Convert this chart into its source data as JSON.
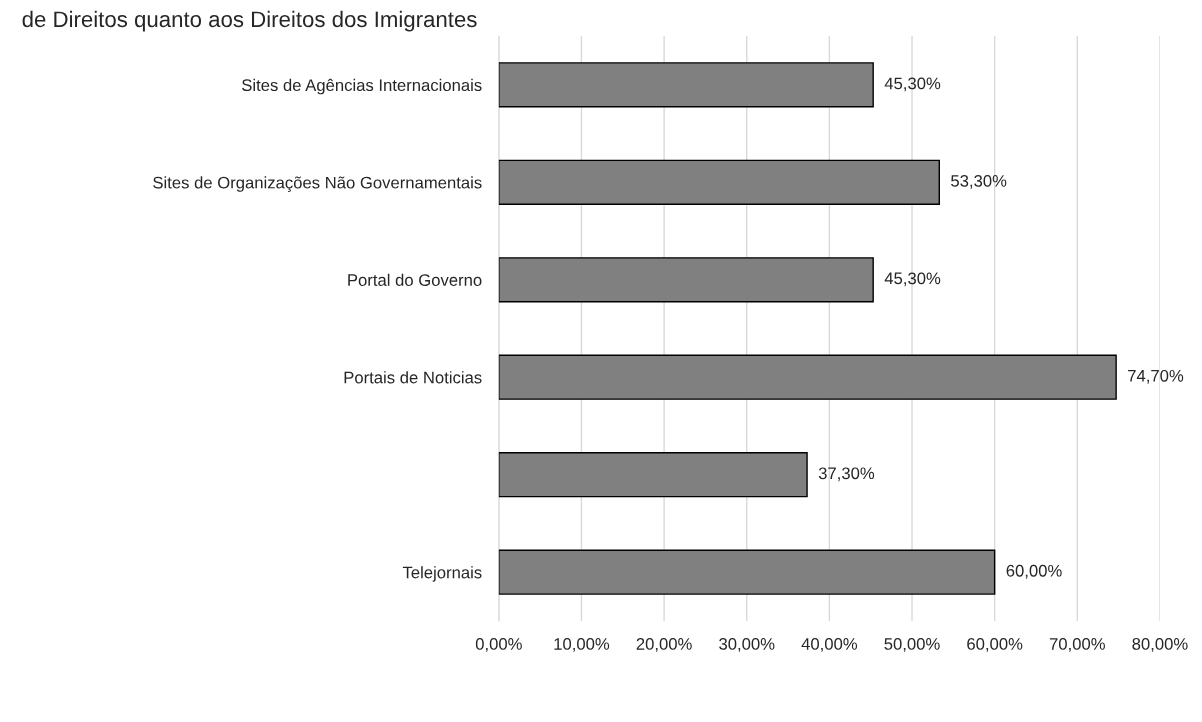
{
  "chart_data": {
    "type": "bar",
    "orientation": "horizontal",
    "title": "de Direitos quanto aos Direitos dos Imigrantes",
    "categories": [
      "Sites de Agências Internacionais",
      "Sites de Organizações Não Governamentais",
      "Portal do Governo",
      "Portais de Noticias",
      null,
      "Telejornais"
    ],
    "values": [
      45.3,
      53.3,
      45.3,
      74.7,
      37.3,
      60.0
    ],
    "value_labels": [
      "45,30%",
      "53,30%",
      "45,30%",
      "74,70%",
      "37,30%",
      "60,00%"
    ],
    "color": "#808080",
    "xlim": [
      0,
      80
    ],
    "xticks": [
      {
        "value": 0,
        "label": "0,00%"
      },
      {
        "value": 10,
        "label": "10,00%"
      },
      {
        "value": 20,
        "label": "20,00%"
      },
      {
        "value": 30,
        "label": "30,00%"
      },
      {
        "value": 40,
        "label": "40,00%"
      },
      {
        "value": 50,
        "label": "50,00%"
      },
      {
        "value": 60,
        "label": "60,00%"
      },
      {
        "value": 70,
        "label": "70,00%"
      },
      {
        "value": 80,
        "label": "80,00%"
      }
    ],
    "grid": "x"
  }
}
